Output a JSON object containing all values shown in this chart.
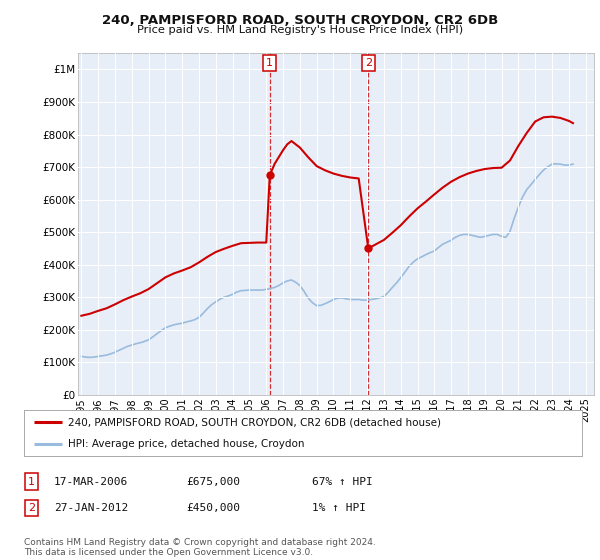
{
  "title_line1": "240, PAMPISFORD ROAD, SOUTH CROYDON, CR2 6DB",
  "title_line2": "Price paid vs. HM Land Registry's House Price Index (HPI)",
  "ylim": [
    0,
    1050000
  ],
  "yticks": [
    0,
    100000,
    200000,
    300000,
    400000,
    500000,
    600000,
    700000,
    800000,
    900000,
    1000000
  ],
  "ytick_labels": [
    "£0",
    "£100K",
    "£200K",
    "£300K",
    "£400K",
    "£500K",
    "£600K",
    "£700K",
    "£800K",
    "£900K",
    "£1M"
  ],
  "xlim_start": 1994.8,
  "xlim_end": 2025.5,
  "background_color": "#ffffff",
  "plot_bg_color": "#e8eef8",
  "grid_color": "#ffffff",
  "red_line_color": "#cc0000",
  "blue_line_color": "#99bbdd",
  "point1_x": 2006.21,
  "point1_y": 675000,
  "point2_x": 2012.07,
  "point2_y": 450000,
  "legend_label_red": "240, PAMPISFORD ROAD, SOUTH CROYDON, CR2 6DB (detached house)",
  "legend_label_blue": "HPI: Average price, detached house, Croydon",
  "table_row1": [
    "1",
    "17-MAR-2006",
    "£675,000",
    "67% ↑ HPI"
  ],
  "table_row2": [
    "2",
    "27-JAN-2012",
    "£450,000",
    "1% ↑ HPI"
  ],
  "footer": "Contains HM Land Registry data © Crown copyright and database right 2024.\nThis data is licensed under the Open Government Licence v3.0.",
  "hpi_data_x": [
    1995.0,
    1995.25,
    1995.5,
    1995.75,
    1996.0,
    1996.25,
    1996.5,
    1996.75,
    1997.0,
    1997.25,
    1997.5,
    1997.75,
    1998.0,
    1998.25,
    1998.5,
    1998.75,
    1999.0,
    1999.25,
    1999.5,
    1999.75,
    2000.0,
    2000.25,
    2000.5,
    2000.75,
    2001.0,
    2001.25,
    2001.5,
    2001.75,
    2002.0,
    2002.25,
    2002.5,
    2002.75,
    2003.0,
    2003.25,
    2003.5,
    2003.75,
    2004.0,
    2004.25,
    2004.5,
    2004.75,
    2005.0,
    2005.25,
    2005.5,
    2005.75,
    2006.0,
    2006.25,
    2006.5,
    2006.75,
    2007.0,
    2007.25,
    2007.5,
    2007.75,
    2008.0,
    2008.25,
    2008.5,
    2008.75,
    2009.0,
    2009.25,
    2009.5,
    2009.75,
    2010.0,
    2010.25,
    2010.5,
    2010.75,
    2011.0,
    2011.25,
    2011.5,
    2011.75,
    2012.0,
    2012.25,
    2012.5,
    2012.75,
    2013.0,
    2013.25,
    2013.5,
    2013.75,
    2014.0,
    2014.25,
    2014.5,
    2014.75,
    2015.0,
    2015.25,
    2015.5,
    2015.75,
    2016.0,
    2016.25,
    2016.5,
    2016.75,
    2017.0,
    2017.25,
    2017.5,
    2017.75,
    2018.0,
    2018.25,
    2018.5,
    2018.75,
    2019.0,
    2019.25,
    2019.5,
    2019.75,
    2020.0,
    2020.25,
    2020.5,
    2020.75,
    2021.0,
    2021.25,
    2021.5,
    2021.75,
    2022.0,
    2022.25,
    2022.5,
    2022.75,
    2023.0,
    2023.25,
    2023.5,
    2023.75,
    2024.0,
    2024.25
  ],
  "hpi_data_y": [
    118000,
    116000,
    115000,
    116000,
    118000,
    120000,
    122000,
    126000,
    131000,
    137000,
    143000,
    149000,
    153000,
    157000,
    160000,
    164000,
    169000,
    178000,
    188000,
    197000,
    206000,
    211000,
    215000,
    218000,
    220000,
    224000,
    227000,
    231000,
    238000,
    251000,
    265000,
    277000,
    286000,
    294000,
    300000,
    304000,
    309000,
    316000,
    320000,
    321000,
    322000,
    322000,
    322000,
    322000,
    324000,
    327000,
    330000,
    336000,
    344000,
    350000,
    353000,
    346000,
    336000,
    318000,
    297000,
    283000,
    274000,
    275000,
    280000,
    286000,
    293000,
    297000,
    298000,
    295000,
    293000,
    293000,
    293000,
    291000,
    291000,
    293000,
    295000,
    298000,
    302000,
    315000,
    330000,
    344000,
    360000,
    377000,
    395000,
    408000,
    418000,
    424000,
    431000,
    437000,
    442000,
    453000,
    463000,
    469000,
    475000,
    484000,
    490000,
    493000,
    493000,
    490000,
    487000,
    484000,
    487000,
    490000,
    493000,
    493000,
    487000,
    484000,
    502000,
    542000,
    577000,
    608000,
    631000,
    646000,
    662000,
    677000,
    691000,
    701000,
    709000,
    710000,
    709000,
    706000,
    706000,
    709000
  ],
  "price_data_x": [
    1995.0,
    1995.5,
    1996.0,
    1996.5,
    1997.0,
    1997.5,
    1998.0,
    1998.5,
    1999.0,
    1999.5,
    2000.0,
    2000.5,
    2001.0,
    2001.5,
    2002.0,
    2002.5,
    2003.0,
    2003.5,
    2004.0,
    2004.5,
    2005.0,
    2005.5,
    2006.0,
    2006.21,
    2006.5,
    2007.0,
    2007.25,
    2007.5,
    2008.0,
    2008.5,
    2009.0,
    2009.5,
    2010.0,
    2010.5,
    2011.0,
    2011.5,
    2012.07,
    2012.5,
    2013.0,
    2013.5,
    2014.0,
    2014.5,
    2015.0,
    2015.5,
    2016.0,
    2016.5,
    2017.0,
    2017.5,
    2018.0,
    2018.5,
    2019.0,
    2019.5,
    2020.0,
    2020.5,
    2021.0,
    2021.5,
    2022.0,
    2022.5,
    2023.0,
    2023.5,
    2024.0,
    2024.25
  ],
  "price_data_y": [
    243000,
    249000,
    258000,
    266000,
    278000,
    291000,
    302000,
    312000,
    325000,
    343000,
    361000,
    373000,
    382000,
    392000,
    407000,
    424000,
    439000,
    449000,
    458000,
    466000,
    467000,
    468000,
    468000,
    675000,
    710000,
    752000,
    770000,
    780000,
    760000,
    730000,
    703000,
    690000,
    680000,
    673000,
    668000,
    665000,
    450000,
    462000,
    476000,
    498000,
    521000,
    548000,
    573000,
    594000,
    616000,
    637000,
    655000,
    669000,
    680000,
    688000,
    694000,
    697000,
    698000,
    720000,
    765000,
    805000,
    840000,
    853000,
    855000,
    851000,
    842000,
    835000
  ]
}
